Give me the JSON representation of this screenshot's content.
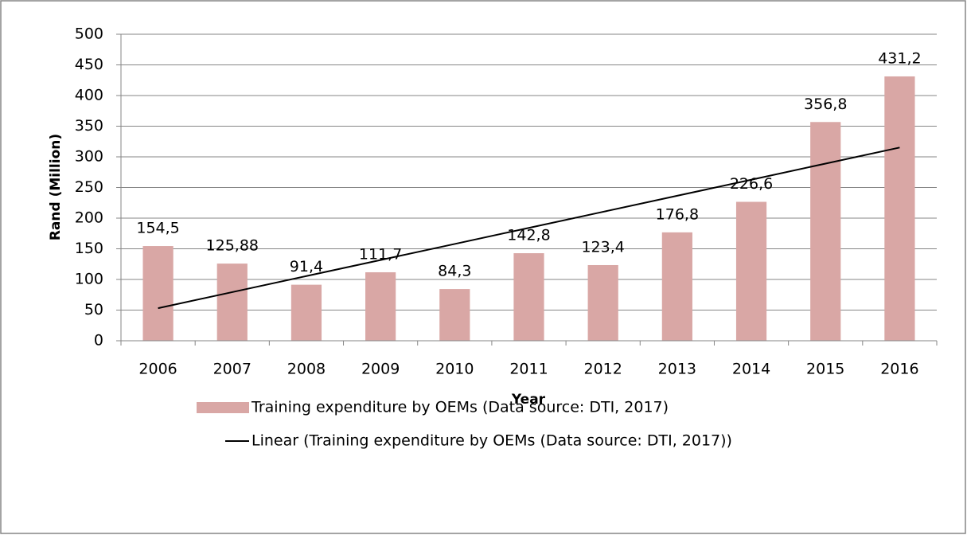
{
  "chart_data": {
    "type": "bar",
    "categories": [
      "2006",
      "2007",
      "2008",
      "2009",
      "2010",
      "2011",
      "2012",
      "2013",
      "2014",
      "2015",
      "2016"
    ],
    "series": [
      {
        "name": "Training expenditure by OEMs (Data source: DTI, 2017)",
        "color": "#d9a7a5",
        "values": [
          154.5,
          125.88,
          91.4,
          111.7,
          84.3,
          142.8,
          123.4,
          176.8,
          226.6,
          356.8,
          431.2
        ],
        "value_labels": [
          "154,5",
          "125,88",
          "91,4",
          "111,7",
          "84,3",
          "142,8",
          "123,4",
          "176,8",
          "226,6",
          "356,8",
          "431,2"
        ]
      },
      {
        "name": "Linear (Training expenditure by OEMs (Data source: DTI, 2017))",
        "color": "#000000",
        "type": "line",
        "values": [
          53.1,
          79.3,
          105.5,
          131.7,
          157.9,
          184.1,
          210.3,
          236.5,
          262.7,
          289.0,
          315.2
        ]
      }
    ],
    "xlabel": "Year",
    "ylabel": "Rand (Million)",
    "ylim": [
      0,
      500
    ],
    "yticks": [
      0,
      50,
      100,
      150,
      200,
      250,
      300,
      350,
      400,
      450,
      500
    ],
    "grid": true
  }
}
